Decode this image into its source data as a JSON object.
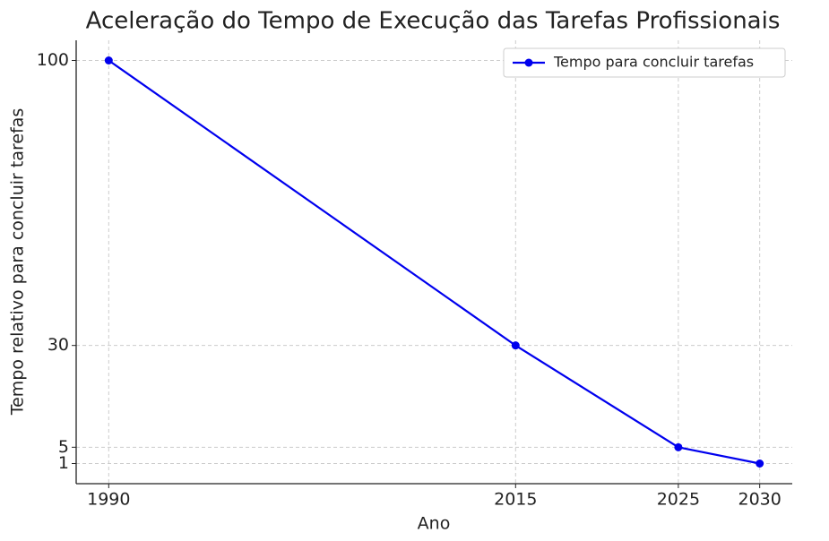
{
  "chart_data": {
    "type": "line",
    "title": "Aceleração do Tempo de Execução das Tarefas Profissionais",
    "x_label": "Ano",
    "y_label": "Tempo relativo para concluir tarefas",
    "x": [
      1990,
      2015,
      2025,
      2030
    ],
    "series": [
      {
        "name": "Tempo para concluir tarefas",
        "color": "#0000ee",
        "values": [
          100,
          30,
          5,
          1
        ]
      }
    ],
    "xlim": [
      1988,
      2032
    ],
    "xticks": [
      1990,
      2015,
      2025,
      2030
    ],
    "ylim": [
      -3.95,
      104.95
    ],
    "yticks": [
      1,
      5,
      30,
      100
    ],
    "grid": true,
    "legend": "upper right"
  }
}
